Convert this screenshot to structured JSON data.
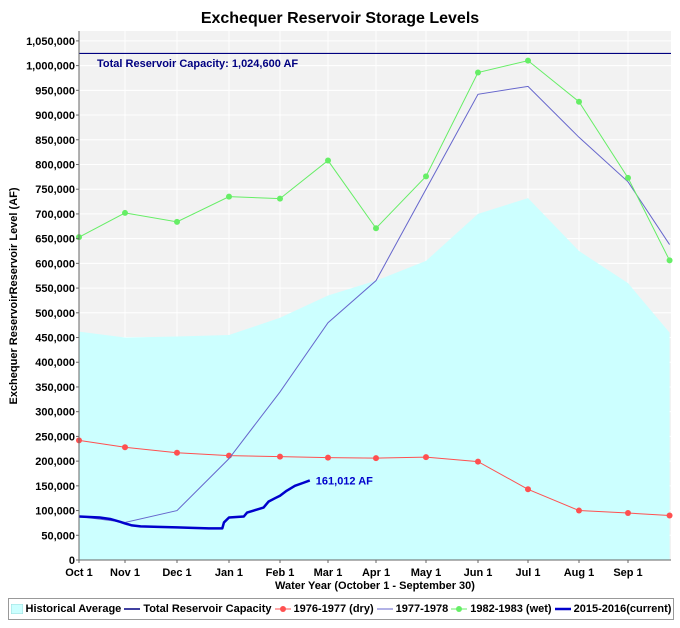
{
  "chart_data": {
    "type": "line",
    "title": "Exchequer Reservoir Storage Levels",
    "xlabel": "Water Year (October 1 - September 30)",
    "ylabel": "Exchequer ReservoirReservoir Level (AF)",
    "x_ticks": [
      "Oct 1",
      "Nov 1",
      "Dec 1",
      "Jan 1",
      "Feb 1",
      "Mar 1",
      "Apr 1",
      "May 1",
      "Jun 1",
      "Jul 1",
      "Aug 1",
      "Sep 1"
    ],
    "y_ticks": [
      "0",
      "50,000",
      "100,000",
      "150,000",
      "200,000",
      "250,000",
      "300,000",
      "350,000",
      "400,000",
      "450,000",
      "500,000",
      "550,000",
      "600,000",
      "650,000",
      "700,000",
      "750,000",
      "800,000",
      "850,000",
      "900,000",
      "950,000",
      "1,000,000",
      "1,050,000"
    ],
    "ylim": [
      0,
      1070000
    ],
    "capacity": {
      "value": 1024600,
      "label": "Total Reservoir Capacity: 1,024,600 AF"
    },
    "current_label": "161,012 AF",
    "series": [
      {
        "name": "Historical Average",
        "kind": "area",
        "color": "#ccffff",
        "x": [
          "Oct 1",
          "Nov 1",
          "Dec 1",
          "Jan 1",
          "Feb 1",
          "Mar 1",
          "Apr 1",
          "May 1",
          "Jun 1",
          "Jul 1",
          "Aug 1",
          "Sep 1",
          "Sep 30"
        ],
        "values": [
          462000,
          450000,
          452000,
          455000,
          490000,
          535000,
          565000,
          605000,
          700000,
          732000,
          625000,
          560000,
          460000
        ]
      },
      {
        "name": "Total Reservoir Capacity",
        "kind": "hline",
        "color": "#000080"
      },
      {
        "name": "1976-1977 (dry)",
        "kind": "line-dot",
        "color": "#ff5050",
        "x": [
          "Oct 1",
          "Nov 1",
          "Dec 1",
          "Jan 1",
          "Feb 1",
          "Mar 1",
          "Apr 1",
          "May 1",
          "Jun 1",
          "Jul 1",
          "Aug 1",
          "Sep 1",
          "Sep 30"
        ],
        "values": [
          242000,
          228000,
          217000,
          211000,
          209000,
          207000,
          206000,
          208000,
          199000,
          143000,
          100000,
          95000,
          90000
        ]
      },
      {
        "name": "1977-1978",
        "kind": "line",
        "color": "#6666cc",
        "x": [
          "Oct 1",
          "Nov 1",
          "Dec 1",
          "Jan 1",
          "Feb 1",
          "Mar 1",
          "Apr 1",
          "May 1",
          "Jun 1",
          "Jul 1",
          "Aug 1",
          "Sep 1",
          "Sep 30"
        ],
        "values": [
          88000,
          76000,
          100000,
          205000,
          340000,
          480000,
          565000,
          750000,
          942000,
          958000,
          855000,
          765000,
          638000
        ]
      },
      {
        "name": "1982-1983 (wet)",
        "kind": "line-dot",
        "color": "#66ee66",
        "x": [
          "Oct 1",
          "Nov 1",
          "Dec 1",
          "Jan 1",
          "Feb 1",
          "Mar 1",
          "Apr 1",
          "May 1",
          "Jun 1",
          "Jul 1",
          "Aug 1",
          "Sep 1",
          "Sep 30"
        ],
        "values": [
          653000,
          702000,
          684000,
          735000,
          731000,
          808000,
          671000,
          776000,
          986000,
          1010000,
          927000,
          773000,
          606000
        ]
      },
      {
        "name": "2015-2016(current)",
        "kind": "thick",
        "color": "#0000cc",
        "points": [
          [
            "Oct 1",
            88000
          ],
          [
            "Oct 8",
            87000
          ],
          [
            "Oct 15",
            86000
          ],
          [
            "Oct 22",
            83000
          ],
          [
            "Oct 29",
            77000
          ],
          [
            "Nov 1",
            74000
          ],
          [
            "Nov 5",
            70000
          ],
          [
            "Nov 10",
            68000
          ],
          [
            "Nov 20",
            67000
          ],
          [
            "Dec 1",
            66000
          ],
          [
            "Dec 10",
            65000
          ],
          [
            "Dec 20",
            64000
          ],
          [
            "Dec 28",
            64000
          ],
          [
            "Dec 29",
            76000
          ],
          [
            "Jan 1",
            86000
          ],
          [
            "Jan 10",
            88000
          ],
          [
            "Jan 12",
            96000
          ],
          [
            "Jan 18",
            102000
          ],
          [
            "Jan 22",
            106000
          ],
          [
            "Jan 25",
            118000
          ],
          [
            "Jan 29",
            125000
          ],
          [
            "Feb 1",
            130000
          ],
          [
            "Feb 5",
            140000
          ],
          [
            "Feb 10",
            150000
          ],
          [
            "Feb 15",
            156000
          ],
          [
            "Feb 19",
            161012
          ]
        ]
      }
    ]
  }
}
